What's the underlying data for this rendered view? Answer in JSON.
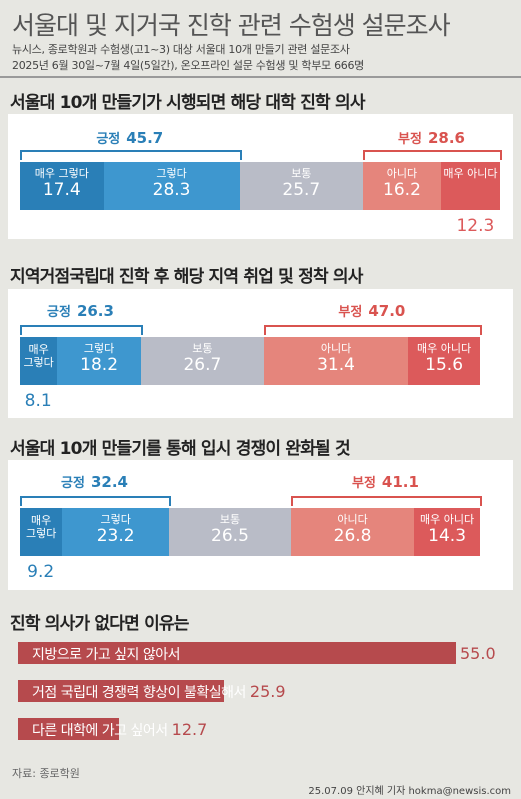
{
  "header": {
    "title": "서울대 및 지거국 진학 관련 수험생 설문조사",
    "source_line": "뉴시스, 종로학원과 수험생(고1~3) 대상 서울대 10개 만들기 관련 설문조사",
    "period_line": "2025년 6월 30일~7월 4일(5일간), 온오프라인 설문 수험생 및 학부모 666명"
  },
  "colors": {
    "very_yes": "#2a7fb7",
    "yes": "#3e97cf",
    "neutral": "#b9bcc7",
    "no": "#e5857c",
    "very_no": "#dc5a5b",
    "reason_bar": "#b64a4d"
  },
  "chart_data": [
    {
      "type": "bar",
      "title": "서울대 10개 만들기가 시행되면 해당 대학 진학 의사",
      "positive": {
        "label": "긍정",
        "value": 45.7
      },
      "negative": {
        "label": "부정",
        "value": 28.6
      },
      "categories": [
        "매우 그렇다",
        "그렇다",
        "보통",
        "아니다",
        "매우 아니다"
      ],
      "values": [
        17.4,
        28.3,
        25.7,
        16.2,
        12.3
      ]
    },
    {
      "type": "bar",
      "title": "지역거점국립대 진학 후 해당 지역 취업 및 정착 의사",
      "positive": {
        "label": "긍정",
        "value": 26.3
      },
      "negative": {
        "label": "부정",
        "value": 47.0
      },
      "categories": [
        "매우 그렇다",
        "그렇다",
        "보통",
        "아니다",
        "매우 아니다"
      ],
      "values": [
        8.1,
        18.2,
        26.7,
        31.4,
        15.6
      ]
    },
    {
      "type": "bar",
      "title": "서울대 10개 만들기를 통해 입시 경쟁이 완화될 것",
      "positive": {
        "label": "긍정",
        "value": 32.4
      },
      "negative": {
        "label": "부정",
        "value": 41.1
      },
      "categories": [
        "매우 그렇다",
        "그렇다",
        "보통",
        "아니다",
        "매우 아니다"
      ],
      "values": [
        9.2,
        23.2,
        26.5,
        26.8,
        14.3
      ]
    },
    {
      "type": "bar",
      "title": "진학 의사가 없다면 이유는",
      "categories": [
        "지방으로 가고 싶지 않아서",
        "거점 국립대 경쟁력 향상이 불확실해서",
        "다른 대학에 가고 싶어서"
      ],
      "values": [
        55.0,
        25.9,
        12.7
      ]
    }
  ],
  "footer": {
    "source": "자료: 종로학원",
    "credit": "25.07.09 안지혜 기자 hokma@newsis.com"
  }
}
